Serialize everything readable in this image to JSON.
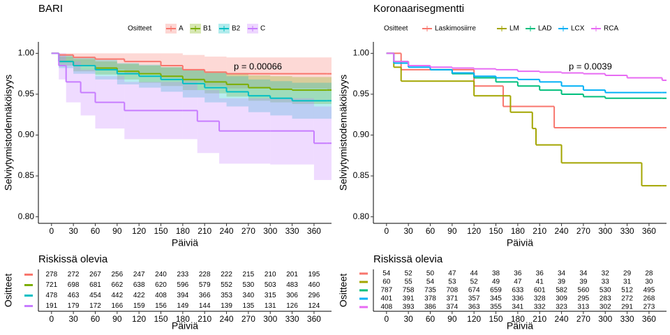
{
  "chart_data": [
    {
      "type": "line",
      "step": true,
      "grid": false,
      "title": "BARI",
      "legend_title": "Ositteet",
      "xlabel": "Päiviä",
      "ylabel": "Selviytymistodennäköisyys",
      "annotation": "p = 0.00066",
      "xlim": [
        -18,
        384
      ],
      "ylim": [
        0.792,
        1.014
      ],
      "xticks": [
        0,
        30,
        60,
        90,
        120,
        150,
        180,
        210,
        240,
        270,
        300,
        330,
        360
      ],
      "yticks": [
        {
          "value": 0.8,
          "label": "0.80"
        },
        {
          "value": 0.85,
          "label": "0.85"
        },
        {
          "value": 0.9,
          "label": "0.90"
        },
        {
          "value": 0.95,
          "label": "0.95"
        },
        {
          "value": 1,
          "label": "1.00"
        }
      ],
      "series": [
        {
          "name": "A",
          "color": "#F8766D",
          "x": [
            0,
            10,
            30,
            60,
            100,
            150,
            180,
            210,
            240,
            378
          ],
          "values": [
            1,
            0.998,
            0.995,
            0.993,
            0.99,
            0.985,
            0.98,
            0.977,
            0.975,
            0.975
          ],
          "ci_lower": [
            1,
            0.99,
            0.985,
            0.98,
            0.975,
            0.97,
            0.965,
            0.96,
            0.957,
            0.955
          ],
          "ci_upper": [
            1,
            1,
            1,
            1,
            1,
            1,
            0.998,
            0.996,
            0.995,
            0.995
          ]
        },
        {
          "name": "B1",
          "color": "#7CAE00",
          "x": [
            0,
            10,
            30,
            60,
            90,
            120,
            150,
            180,
            210,
            240,
            270,
            300,
            330,
            378
          ],
          "values": [
            1,
            0.99,
            0.985,
            0.982,
            0.978,
            0.975,
            0.972,
            0.968,
            0.965,
            0.962,
            0.958,
            0.956,
            0.955,
            0.955
          ],
          "ci_lower": [
            1,
            0.985,
            0.978,
            0.974,
            0.968,
            0.964,
            0.96,
            0.955,
            0.951,
            0.947,
            0.942,
            0.94,
            0.938,
            0.938
          ],
          "ci_upper": [
            1,
            0.996,
            0.993,
            0.99,
            0.987,
            0.985,
            0.983,
            0.98,
            0.978,
            0.976,
            0.973,
            0.972,
            0.971,
            0.971
          ]
        },
        {
          "name": "B2",
          "color": "#00BFC4",
          "x": [
            0,
            10,
            30,
            60,
            90,
            120,
            150,
            180,
            210,
            240,
            270,
            300,
            330,
            378
          ],
          "values": [
            1,
            0.99,
            0.985,
            0.98,
            0.975,
            0.972,
            0.968,
            0.963,
            0.958,
            0.953,
            0.948,
            0.945,
            0.942,
            0.942
          ],
          "ci_lower": [
            1,
            0.982,
            0.975,
            0.968,
            0.962,
            0.958,
            0.953,
            0.946,
            0.94,
            0.935,
            0.928,
            0.924,
            0.92,
            0.92
          ],
          "ci_upper": [
            1,
            0.998,
            0.995,
            0.992,
            0.988,
            0.986,
            0.983,
            0.98,
            0.976,
            0.972,
            0.968,
            0.966,
            0.964,
            0.964
          ]
        },
        {
          "name": "C",
          "color": "#C77CFF",
          "x": [
            0,
            10,
            20,
            40,
            60,
            100,
            180,
            200,
            230,
            300,
            360,
            378
          ],
          "values": [
            1,
            0.985,
            0.965,
            0.952,
            0.94,
            0.93,
            0.93,
            0.917,
            0.905,
            0.905,
            0.89,
            0.89
          ],
          "ci_lower": [
            1,
            0.968,
            0.94,
            0.924,
            0.908,
            0.895,
            0.895,
            0.878,
            0.865,
            0.864,
            0.845,
            0.845
          ],
          "ci_upper": [
            1,
            1,
            0.99,
            0.98,
            0.972,
            0.965,
            0.965,
            0.955,
            0.945,
            0.945,
            0.935,
            0.935
          ]
        }
      ],
      "risk_table": {
        "title": "Riskissä olevia",
        "rows": [
          [
            278,
            272,
            267,
            256,
            247,
            240,
            233,
            228,
            222,
            215,
            210,
            201,
            195
          ],
          [
            721,
            698,
            681,
            662,
            638,
            620,
            596,
            579,
            552,
            530,
            503,
            483,
            460
          ],
          [
            478,
            463,
            454,
            442,
            422,
            408,
            394,
            366,
            353,
            340,
            315,
            306,
            296
          ],
          [
            191,
            179,
            172,
            166,
            159,
            156,
            149,
            144,
            139,
            135,
            131,
            126,
            124
          ]
        ]
      }
    },
    {
      "type": "line",
      "step": true,
      "grid": false,
      "title": "Koronaarisegmentti",
      "legend_title": "Ositteet",
      "xlabel": "Päiviä",
      "ylabel": "Selviytymistodennäköisyys",
      "annotation": "p = 0.0039",
      "xlim": [
        -18,
        384
      ],
      "ylim": [
        0.792,
        1.014
      ],
      "xticks": [
        0,
        30,
        60,
        90,
        120,
        150,
        180,
        210,
        240,
        270,
        300,
        330,
        360
      ],
      "yticks": [
        {
          "value": 0.8,
          "label": "0.80"
        },
        {
          "value": 0.85,
          "label": "0.85"
        },
        {
          "value": 0.9,
          "label": "0.90"
        },
        {
          "value": 0.95,
          "label": "0.95"
        },
        {
          "value": 1,
          "label": "1.00"
        }
      ],
      "series": [
        {
          "name": "Laskimosiirre",
          "color": "#F8766D",
          "x": [
            0,
            20,
            120,
            160,
            230,
            378
          ],
          "values": [
            1,
            0.98,
            0.96,
            0.935,
            0.909,
            0.909
          ]
        },
        {
          "name": "LM",
          "color": "#A3A500",
          "x": [
            0,
            10,
            20,
            120,
            170,
            200,
            205,
            240,
            350,
            378
          ],
          "values": [
            1,
            0.983,
            0.966,
            0.948,
            0.928,
            0.908,
            0.888,
            0.866,
            0.838,
            0.838
          ]
        },
        {
          "name": "LAD",
          "color": "#00BF7D",
          "x": [
            0,
            10,
            30,
            60,
            90,
            120,
            150,
            180,
            210,
            240,
            270,
            300,
            378
          ],
          "values": [
            1,
            0.99,
            0.985,
            0.98,
            0.975,
            0.97,
            0.965,
            0.96,
            0.955,
            0.95,
            0.947,
            0.945,
            0.945
          ]
        },
        {
          "name": "LCX",
          "color": "#00B0F6",
          "x": [
            0,
            10,
            30,
            60,
            90,
            120,
            150,
            180,
            210,
            240,
            270,
            300,
            378
          ],
          "values": [
            1,
            0.988,
            0.983,
            0.98,
            0.976,
            0.972,
            0.97,
            0.968,
            0.965,
            0.96,
            0.955,
            0.952,
            0.952
          ]
        },
        {
          "name": "RCA",
          "color": "#E76BF3",
          "x": [
            0,
            10,
            30,
            60,
            90,
            120,
            150,
            180,
            210,
            240,
            270,
            300,
            330,
            378
          ],
          "values": [
            1,
            0.99,
            0.985,
            0.983,
            0.982,
            0.981,
            0.98,
            0.978,
            0.977,
            0.976,
            0.975,
            0.973,
            0.97,
            0.967
          ]
        }
      ],
      "risk_table": {
        "title": "Riskissä olevia",
        "rows": [
          [
            54,
            52,
            50,
            47,
            44,
            38,
            36,
            36,
            34,
            34,
            32,
            29,
            28
          ],
          [
            60,
            55,
            54,
            53,
            52,
            49,
            47,
            41,
            39,
            39,
            33,
            31,
            30
          ],
          [
            787,
            758,
            735,
            708,
            674,
            659,
            633,
            601,
            582,
            560,
            530,
            512,
            495
          ],
          [
            401,
            391,
            378,
            371,
            357,
            345,
            336,
            328,
            309,
            295,
            283,
            272,
            268
          ],
          [
            408,
            393,
            386,
            374,
            363,
            355,
            341,
            332,
            323,
            313,
            302,
            291,
            273
          ]
        ]
      }
    }
  ]
}
